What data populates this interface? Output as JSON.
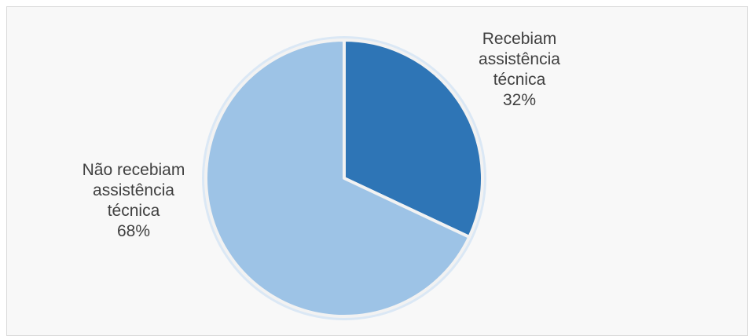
{
  "chart_data": {
    "type": "pie",
    "title": "",
    "legend": "none",
    "slices": [
      {
        "label_lines": [
          "Recebiam",
          "assistência",
          "técnica"
        ],
        "percent_label": "32%",
        "value": 32,
        "color": "#2e75b6"
      },
      {
        "label_lines": [
          "Não recebiam",
          "assistência",
          "técnica"
        ],
        "percent_label": "68%",
        "value": 68,
        "color": "#9dc3e6"
      }
    ],
    "rim_color": "#dbe8f5",
    "separator_color": "#f2f2f2"
  }
}
